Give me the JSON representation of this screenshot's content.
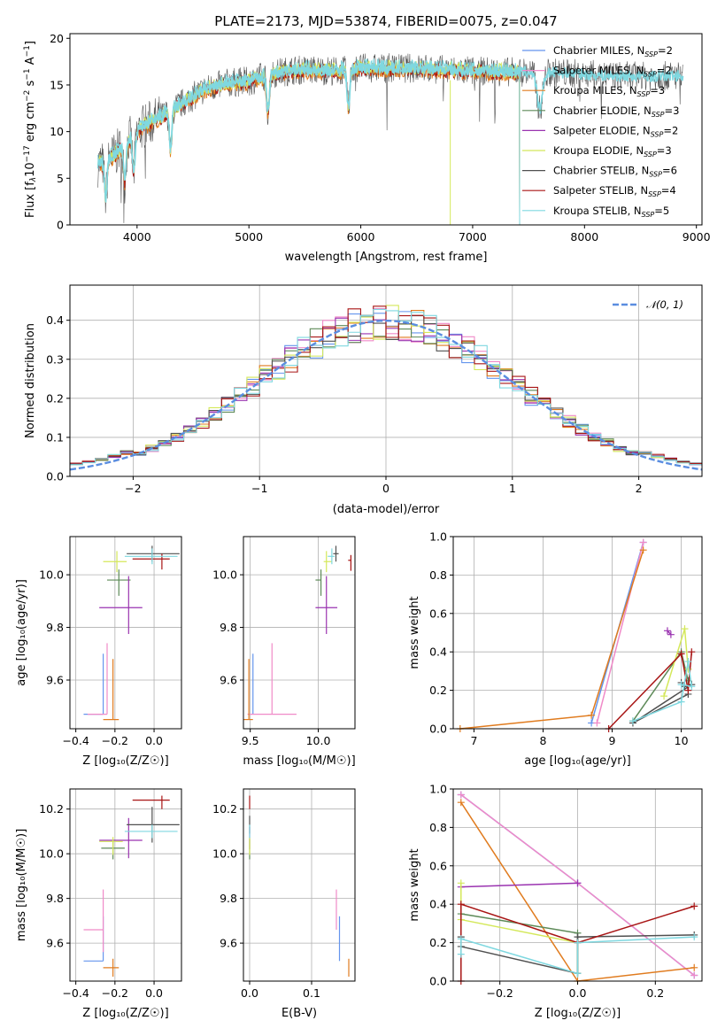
{
  "colors": [
    "#6495ed",
    "#f08ac8",
    "#e07b1e",
    "#5d8a58",
    "#9a33b0",
    "#d4e85a",
    "#505050",
    "#a81515",
    "#7fd8e0"
  ],
  "legend": [
    {
      "pre": "Chabrier MILES, N",
      "sub": "SSP",
      "post": "=2"
    },
    {
      "pre": "Salpeter MILES, N",
      "sub": "SSP",
      "post": "=2"
    },
    {
      "pre": "Kroupa MILES, N",
      "sub": "SSP",
      "post": "=3"
    },
    {
      "pre": "Chabrier ELODIE, N",
      "sub": "SSP",
      "post": "=3"
    },
    {
      "pre": "Salpeter ELODIE, N",
      "sub": "SSP",
      "post": "=2"
    },
    {
      "pre": "Kroupa ELODIE, N",
      "sub": "SSP",
      "post": "=3"
    },
    {
      "pre": "Chabrier STELIB, N",
      "sub": "SSP",
      "post": "=6"
    },
    {
      "pre": "Salpeter STELIB, N",
      "sub": "SSP",
      "post": "=4"
    },
    {
      "pre": "Kroupa STELIB, N",
      "sub": "SSP",
      "post": "=5"
    }
  ],
  "chart_data": [
    {
      "id": "spectrum",
      "type": "line",
      "title": "PLATE=2173, MJD=53874, FIBERID=0075, z=0.047",
      "xlabel": "wavelength [Angstrom, rest frame]",
      "ylabel_parts": {
        "a": "Flux [f",
        "sub": "λ",
        "b": "10",
        "sup1": "−17",
        "c": " erg cm",
        "sup2": "−2",
        "d": " s",
        "sup3": "−1",
        "e": " A",
        "sup4": "−1",
        "f": "]"
      },
      "xlim": [
        3400,
        9050
      ],
      "ylim": [
        0,
        20.5
      ],
      "xticks": [
        4000,
        5000,
        6000,
        7000,
        8000,
        9000
      ],
      "yticks": [
        0,
        5,
        10,
        15,
        20
      ],
      "continuum": [
        [
          3650,
          6.5
        ],
        [
          3800,
          7.5
        ],
        [
          3950,
          9.5
        ],
        [
          4050,
          10.5
        ],
        [
          4200,
          11.5
        ],
        [
          4400,
          13
        ],
        [
          4600,
          14.5
        ],
        [
          4800,
          15.2
        ],
        [
          5000,
          15.4
        ],
        [
          5200,
          16.2
        ],
        [
          5400,
          16.6
        ],
        [
          5600,
          16.6
        ],
        [
          5800,
          16.5
        ],
        [
          6000,
          16.8
        ],
        [
          6200,
          16.8
        ],
        [
          6500,
          16.8
        ],
        [
          6800,
          16.6
        ],
        [
          7000,
          16.5
        ],
        [
          7400,
          16.4
        ],
        [
          7800,
          16.3
        ],
        [
          8200,
          16.0
        ],
        [
          8600,
          15.9
        ],
        [
          8800,
          16.0
        ]
      ],
      "model_end_wavelength": 7420,
      "dip_wavelengths": [
        3720,
        3890,
        3970,
        4300,
        5170,
        5890,
        7600
      ]
    },
    {
      "id": "residuals",
      "type": "histogram",
      "xlabel": "(data-model)/error",
      "ylabel": "Normed distribution",
      "xlim": [
        -2.5,
        2.5
      ],
      "ylim": [
        0,
        0.49
      ],
      "xticks": [
        -2,
        -1,
        0,
        1,
        2
      ],
      "yticks": [
        0,
        0.1,
        0.2,
        0.3,
        0.4
      ],
      "legend_label": "𝒩(0, 1)",
      "bin_width": 0.1
    },
    {
      "id": "age-vs-Z",
      "type": "errorbar",
      "xlabel": "Z [log₁₀(Z/Z☉)]",
      "ylabel": "age  [log₁₀(age/yr)]",
      "xlim": [
        -0.43,
        0.14
      ],
      "ylim": [
        9.415,
        10.145
      ],
      "xticks": [
        -0.4,
        -0.2,
        0.0
      ],
      "yticks": [
        9.6,
        9.8,
        10.0
      ],
      "points": [
        {
          "x": -0.26,
          "xerr": [
            0.1,
            0.0
          ],
          "y": 9.47,
          "yerr": [
            0.0,
            0.23
          ]
        },
        {
          "x": -0.24,
          "xerr": [
            0.1,
            0.0
          ],
          "y": 9.47,
          "yerr": [
            0.0,
            0.27
          ]
        },
        {
          "x": -0.21,
          "xerr": [
            0.05,
            0.03
          ],
          "y": 9.45,
          "yerr": [
            0.0,
            0.23
          ]
        },
        {
          "x": -0.18,
          "xerr": [
            0.06,
            0.06
          ],
          "y": 9.98,
          "yerr": [
            0.06,
            0.04
          ]
        },
        {
          "x": -0.13,
          "xerr": [
            0.15,
            0.07
          ],
          "y": 9.875,
          "yerr": [
            0.1,
            0.12
          ]
        },
        {
          "x": -0.19,
          "xerr": [
            0.07,
            0.05
          ],
          "y": 10.05,
          "yerr": [
            0.04,
            0.04
          ]
        },
        {
          "x": -0.01,
          "xerr": [
            0.13,
            0.14
          ],
          "y": 10.08,
          "yerr": [
            0.03,
            0.03
          ]
        },
        {
          "x": 0.04,
          "xerr": [
            0.15,
            0.04
          ],
          "y": 10.06,
          "yerr": [
            0.04,
            0.02
          ]
        },
        {
          "x": -0.01,
          "xerr": [
            0.14,
            0.13
          ],
          "y": 10.07,
          "yerr": [
            0.03,
            0.03
          ]
        }
      ]
    },
    {
      "id": "age-vs-mass",
      "type": "errorbar",
      "xlabel": "mass [log₁₀(M/M☉)]",
      "ylabel": "",
      "xlim": [
        9.45,
        10.27
      ],
      "ylim": [
        9.415,
        10.145
      ],
      "xticks": [
        9.5,
        10.0
      ],
      "yticks": [
        9.6,
        9.8,
        10.0
      ],
      "points": [
        {
          "x": 9.52,
          "xerr": [
            0.0,
            0.0
          ],
          "y": 9.47,
          "yerr": [
            0.0,
            0.23
          ]
        },
        {
          "x": 9.66,
          "xerr": [
            0.18,
            0.18
          ],
          "y": 9.47,
          "yerr": [
            0.0,
            0.27
          ]
        },
        {
          "x": 9.49,
          "xerr": [
            0.04,
            0.03
          ],
          "y": 9.45,
          "yerr": [
            0.0,
            0.23
          ]
        },
        {
          "x": 10.02,
          "xerr": [
            0.04,
            0.0
          ],
          "y": 9.98,
          "yerr": [
            0.06,
            0.04
          ]
        },
        {
          "x": 10.06,
          "xerr": [
            0.08,
            0.08
          ],
          "y": 9.875,
          "yerr": [
            0.1,
            0.12
          ]
        },
        {
          "x": 10.06,
          "xerr": [
            0.02,
            0.04
          ],
          "y": 10.05,
          "yerr": [
            0.04,
            0.04
          ]
        },
        {
          "x": 10.13,
          "xerr": [
            0.02,
            0.02
          ],
          "y": 10.08,
          "yerr": [
            0.03,
            0.03
          ]
        },
        {
          "x": 10.24,
          "xerr": [
            0.02,
            0.0
          ],
          "y": 10.055,
          "yerr": [
            0.04,
            0.02
          ]
        },
        {
          "x": 10.1,
          "xerr": [
            0.03,
            0.02
          ],
          "y": 10.07,
          "yerr": [
            0.03,
            0.03
          ]
        }
      ]
    },
    {
      "id": "weight-vs-age",
      "type": "line",
      "xlabel": "age  [log₁₀(age/yr)]",
      "ylabel": "mass weight",
      "xlim": [
        6.7,
        10.3
      ],
      "ylim": [
        0,
        1.0
      ],
      "xticks": [
        7,
        8,
        9,
        10
      ],
      "yticks": [
        0.0,
        0.2,
        0.4,
        0.6,
        0.8,
        1.0
      ],
      "series": [
        {
          "x": [
            8.7,
            9.45
          ],
          "y": [
            0.03,
            0.97
          ]
        },
        {
          "x": [
            8.78,
            9.45
          ],
          "y": [
            0.03,
            0.97
          ]
        },
        {
          "x": [
            6.8,
            8.7,
            9.45
          ],
          "y": [
            0.0,
            0.07,
            0.93
          ]
        },
        {
          "x": [
            9.3,
            10.0,
            10.1
          ],
          "y": [
            0.04,
            0.4,
            0.25
          ]
        },
        {
          "x": [
            9.8,
            9.85
          ],
          "y": [
            0.51,
            0.49
          ]
        },
        {
          "x": [
            9.75,
            10.05,
            10.1
          ],
          "y": [
            0.17,
            0.52,
            0.31
          ]
        },
        {
          "x": [
            10.0,
            10.05,
            10.15,
            9.3,
            10.1
          ],
          "y": [
            0.24,
            0.22,
            0.23,
            0.03,
            0.18
          ]
        },
        {
          "x": [
            8.95,
            10.0,
            10.1,
            10.15
          ],
          "y": [
            0.0,
            0.39,
            0.2,
            0.4
          ]
        },
        {
          "x": [
            9.3,
            10.0,
            10.1,
            10.15,
            10.0
          ],
          "y": [
            0.04,
            0.14,
            0.35,
            0.22,
            0.23
          ]
        }
      ]
    },
    {
      "id": "mass-vs-Z",
      "type": "errorbar",
      "xlabel": "Z [log₁₀(Z/Z☉)]",
      "ylabel": "mass [log₁₀(M/M☉)]",
      "xlim": [
        -0.43,
        0.14
      ],
      "ylim": [
        9.43,
        10.29
      ],
      "xticks": [
        -0.4,
        -0.2,
        0.0
      ],
      "yticks": [
        9.6,
        9.8,
        10.0,
        10.2
      ],
      "points": [
        {
          "x": -0.26,
          "xerr": [
            0.1,
            0.0
          ],
          "y": 9.52,
          "yerr": [
            0.0,
            0.2
          ]
        },
        {
          "x": -0.26,
          "xerr": [
            0.1,
            0.0
          ],
          "y": 9.66,
          "yerr": [
            0.1,
            0.18
          ]
        },
        {
          "x": -0.21,
          "xerr": [
            0.05,
            0.03
          ],
          "y": 9.49,
          "yerr": [
            0.04,
            0.04
          ]
        },
        {
          "x": -0.21,
          "xerr": [
            0.06,
            0.06
          ],
          "y": 10.025,
          "yerr": [
            0.05,
            0.04
          ]
        },
        {
          "x": -0.13,
          "xerr": [
            0.15,
            0.07
          ],
          "y": 10.06,
          "yerr": [
            0.08,
            0.1
          ]
        },
        {
          "x": -0.21,
          "xerr": [
            0.07,
            0.05
          ],
          "y": 10.055,
          "yerr": [
            0.06,
            0.02
          ]
        },
        {
          "x": -0.01,
          "xerr": [
            0.13,
            0.14
          ],
          "y": 10.13,
          "yerr": [
            0.08,
            0.08
          ]
        },
        {
          "x": 0.04,
          "xerr": [
            0.15,
            0.04
          ],
          "y": 10.24,
          "yerr": [
            0.04,
            0.02
          ]
        },
        {
          "x": -0.01,
          "xerr": [
            0.14,
            0.13
          ],
          "y": 10.1,
          "yerr": [
            0.03,
            0.03
          ]
        }
      ]
    },
    {
      "id": "mass-vs-ebv",
      "type": "errorbar",
      "xlabel": "E(B-V)",
      "ylabel": "",
      "xlim": [
        -0.01,
        0.17
      ],
      "ylim": [
        9.43,
        10.29
      ],
      "xticks": [
        0.0,
        0.1
      ],
      "yticks": [
        9.6,
        9.8,
        10.0,
        10.2
      ],
      "points": [
        {
          "x": 0.145,
          "xerr": [
            0,
            0
          ],
          "y": 9.52,
          "yerr": [
            0.0,
            0.2
          ]
        },
        {
          "x": 0.14,
          "xerr": [
            0,
            0
          ],
          "y": 9.66,
          "yerr": [
            0.0,
            0.18
          ]
        },
        {
          "x": 0.16,
          "xerr": [
            0,
            0
          ],
          "y": 9.49,
          "yerr": [
            0.04,
            0.04
          ]
        },
        {
          "x": 0.0,
          "xerr": [
            0,
            0
          ],
          "y": 10.025,
          "yerr": [
            0.05,
            0.04
          ]
        },
        {
          "x": 0.0,
          "xerr": [
            0,
            0
          ],
          "y": 10.06,
          "yerr": [
            0.04,
            0.06
          ]
        },
        {
          "x": 0.0,
          "xerr": [
            0,
            0
          ],
          "y": 10.055,
          "yerr": [
            0.06,
            0.02
          ]
        },
        {
          "x": 0.0,
          "xerr": [
            0,
            0
          ],
          "y": 10.13,
          "yerr": [
            0.04,
            0.04
          ]
        },
        {
          "x": 0.0,
          "xerr": [
            0,
            0
          ],
          "y": 10.24,
          "yerr": [
            0.04,
            0.02
          ]
        },
        {
          "x": 0.0,
          "xerr": [
            0,
            0
          ],
          "y": 10.1,
          "yerr": [
            0.03,
            0.03
          ]
        }
      ]
    },
    {
      "id": "weight-vs-Z",
      "type": "line",
      "xlabel": "Z [log₁₀(Z/Z☉)]",
      "ylabel": "mass weight",
      "xlim": [
        -0.32,
        0.32
      ],
      "ylim": [
        0,
        1.0
      ],
      "xticks": [
        -0.2,
        0.0,
        0.2
      ],
      "yticks": [
        0.0,
        0.2,
        0.4,
        0.6,
        0.8,
        1.0
      ],
      "series": [
        {
          "x": [
            -0.3,
            0.0,
            0.3
          ],
          "y": [
            0.97,
            0.51,
            0.03
          ]
        },
        {
          "x": [
            -0.3,
            0.0,
            0.3
          ],
          "y": [
            0.97,
            0.51,
            0.03
          ]
        },
        {
          "x": [
            -0.3,
            0.0,
            0.3
          ],
          "y": [
            0.93,
            0.0,
            0.07
          ]
        },
        {
          "x": [
            -0.3,
            0.0,
            0.0
          ],
          "y": [
            0.35,
            0.25,
            0.04
          ]
        },
        {
          "x": [
            -0.3,
            0.0
          ],
          "y": [
            0.49,
            0.51
          ]
        },
        {
          "x": [
            -0.3,
            -0.3,
            0.0,
            0.0
          ],
          "y": [
            0.51,
            0.32,
            0.2,
            0.04
          ]
        },
        {
          "x": [
            -0.3,
            -0.3,
            0.0,
            0.0,
            0.3
          ],
          "y": [
            0.23,
            0.18,
            0.04,
            0.23,
            0.24
          ]
        },
        {
          "x": [
            -0.3,
            -0.3,
            0.0,
            0.3
          ],
          "y": [
            0.0,
            0.4,
            0.2,
            0.39
          ]
        },
        {
          "x": [
            -0.3,
            -0.3,
            0.0,
            0.0,
            0.3
          ],
          "y": [
            0.14,
            0.22,
            0.04,
            0.2,
            0.23
          ]
        }
      ]
    }
  ]
}
